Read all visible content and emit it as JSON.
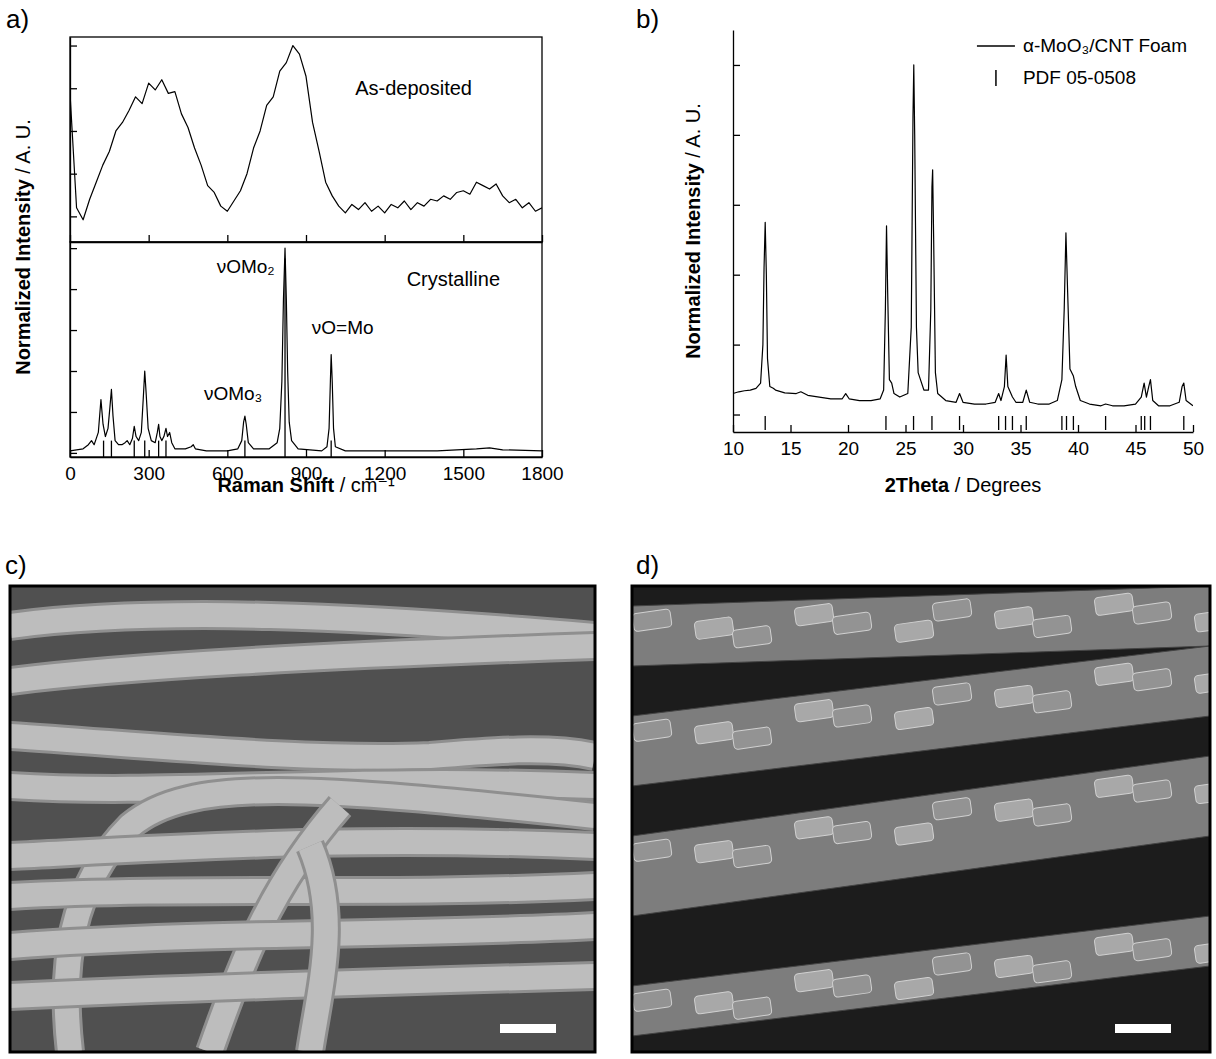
{
  "chart_data": [
    {
      "type": "line",
      "panel": "a)",
      "y_label": "Normalized Intensity",
      "y_label_unit": "/ A. U.",
      "xlim": [
        0,
        1800
      ],
      "xticks": [
        0,
        300,
        600,
        900,
        1200,
        1500,
        1800
      ],
      "ylim": [
        -0.15,
        1.05
      ],
      "yticks": [
        0,
        0.25,
        0.5,
        0.75,
        1.0
      ],
      "tick_labels": false,
      "legend": "upper right",
      "series": [
        {
          "name": "As-deposited",
          "color": "#000000",
          "x": [
            0,
            25,
            50,
            75,
            100,
            125,
            150,
            175,
            200,
            225,
            250,
            275,
            300,
            325,
            350,
            375,
            400,
            425,
            450,
            475,
            500,
            525,
            550,
            575,
            600,
            625,
            650,
            675,
            700,
            725,
            750,
            775,
            800,
            825,
            850,
            875,
            900,
            925,
            950,
            975,
            1000,
            1025,
            1050,
            1075,
            1100,
            1125,
            1150,
            1175,
            1200,
            1225,
            1250,
            1275,
            1300,
            1325,
            1350,
            1375,
            1400,
            1425,
            1450,
            1475,
            1500,
            1525,
            1550,
            1575,
            1600,
            1625,
            1650,
            1675,
            1700,
            1725,
            1750,
            1775,
            1800
          ],
          "values": [
            0.72,
            0.05,
            -0.02,
            0.1,
            0.2,
            0.3,
            0.38,
            0.5,
            0.55,
            0.62,
            0.7,
            0.66,
            0.78,
            0.74,
            0.8,
            0.72,
            0.73,
            0.6,
            0.52,
            0.4,
            0.3,
            0.18,
            0.14,
            0.06,
            0.03,
            0.09,
            0.15,
            0.25,
            0.4,
            0.5,
            0.65,
            0.7,
            0.85,
            0.9,
            1.0,
            0.95,
            0.82,
            0.55,
            0.38,
            0.2,
            0.12,
            0.06,
            0.02,
            0.07,
            0.04,
            0.08,
            0.03,
            0.06,
            0.02,
            0.07,
            0.05,
            0.09,
            0.04,
            0.08,
            0.06,
            0.1,
            0.09,
            0.12,
            0.1,
            0.14,
            0.15,
            0.13,
            0.2,
            0.18,
            0.16,
            0.19,
            0.12,
            0.08,
            0.1,
            0.05,
            0.08,
            0.03,
            0.05
          ]
        }
      ]
    },
    {
      "type": "line",
      "x_label": "Raman Shift",
      "x_label_unit": "/ cm⁻¹",
      "xlim": [
        0,
        1800
      ],
      "xticks": [
        0,
        300,
        600,
        900,
        1200,
        1500,
        1800
      ],
      "ylim": [
        -0.02,
        1.03
      ],
      "yticks": [
        0,
        0.2,
        0.4,
        0.6,
        0.8,
        1.0
      ],
      "tick_labels": "x",
      "legend": "upper right",
      "series": [
        {
          "name": "Crystalline",
          "color": "#000000",
          "x": [
            0,
            50,
            70,
            82,
            92,
            100,
            108,
            118,
            126,
            135,
            145,
            152,
            158,
            164,
            172,
            185,
            198,
            210,
            218,
            228,
            238,
            245,
            252,
            262,
            272,
            280,
            285,
            290,
            298,
            310,
            325,
            333,
            338,
            343,
            350,
            358,
            366,
            372,
            380,
            388,
            400,
            440,
            462,
            470,
            478,
            520,
            600,
            640,
            655,
            662,
            667,
            672,
            680,
            700,
            760,
            790,
            800,
            808,
            814,
            820,
            825,
            830,
            836,
            845,
            870,
            960,
            980,
            988,
            993,
            996,
            1000,
            1005,
            1012,
            1050,
            1200,
            1400,
            1550,
            1600,
            1650,
            1800
          ],
          "values": [
            0.01,
            0.02,
            0.04,
            0.06,
            0.04,
            0.07,
            0.1,
            0.26,
            0.14,
            0.08,
            0.12,
            0.22,
            0.31,
            0.18,
            0.06,
            0.04,
            0.04,
            0.05,
            0.06,
            0.04,
            0.07,
            0.13,
            0.08,
            0.06,
            0.1,
            0.28,
            0.4,
            0.3,
            0.12,
            0.06,
            0.05,
            0.1,
            0.14,
            0.08,
            0.06,
            0.08,
            0.12,
            0.08,
            0.1,
            0.05,
            0.02,
            0.02,
            0.03,
            0.04,
            0.02,
            0.01,
            0.01,
            0.02,
            0.06,
            0.15,
            0.18,
            0.14,
            0.05,
            0.02,
            0.02,
            0.05,
            0.12,
            0.35,
            0.75,
            1.0,
            0.75,
            0.4,
            0.15,
            0.06,
            0.02,
            0.01,
            0.03,
            0.12,
            0.35,
            0.48,
            0.35,
            0.12,
            0.03,
            0.01,
            0.01,
            0.01,
            0.02,
            0.025,
            0.015,
            0.01
          ]
        }
      ],
      "reference": {
        "x": [
          128,
          158,
          245,
          285,
          338,
          366,
          667,
          820,
          996
        ],
        "values": [
          0.06,
          0.06,
          0.06,
          0.06,
          0.06,
          0.06,
          0.06,
          0.95,
          0.06
        ]
      },
      "annotations": [
        {
          "text": "νOMo₂",
          "x": 670,
          "y": 0.88
        },
        {
          "text": "νO=Mo",
          "x": 1040,
          "y": 0.58
        },
        {
          "text": "νOMo₃",
          "x": 622,
          "y": 0.26
        }
      ]
    },
    {
      "type": "line",
      "panel": "b)",
      "x_label": "2Theta",
      "x_label_unit": "/ Degrees",
      "y_label": "Normalized Intensity",
      "y_label_unit": "/ A. U.",
      "xlim": [
        10,
        50
      ],
      "xticks": [
        10,
        15,
        20,
        25,
        30,
        35,
        40,
        45,
        50
      ],
      "ylim": [
        -0.05,
        1.1
      ],
      "yticks": [
        0,
        0.2,
        0.4,
        0.6,
        0.8,
        1.0
      ],
      "tick_labels": "x",
      "legend": "upper right",
      "series": [
        {
          "name": "α-MoO₃/CNT Foam",
          "color": "#000000",
          "x": [
            10,
            10.5,
            11,
            11.5,
            12,
            12.4,
            12.6,
            12.7,
            12.8,
            12.9,
            13,
            13.2,
            13.5,
            13.7,
            14.5,
            15.5,
            15.9,
            16.5,
            17.5,
            18.5,
            19.5,
            19.8,
            20.1,
            21,
            22,
            22.8,
            23.1,
            23.25,
            23.35,
            23.45,
            23.6,
            23.8,
            24,
            24.5,
            25.2,
            25.5,
            25.65,
            25.72,
            25.8,
            25.95,
            26.1,
            26.3,
            26.6,
            27,
            27.2,
            27.3,
            27.36,
            27.45,
            27.6,
            27.8,
            28.5,
            29.4,
            29.7,
            30,
            31,
            32,
            32.8,
            33.1,
            33.3,
            33.6,
            33.75,
            33.9,
            34.3,
            34.6,
            35.2,
            35.5,
            35.8,
            36.5,
            37.5,
            38.2,
            38.6,
            38.8,
            38.95,
            39.1,
            39.3,
            39.6,
            39.8,
            40.2,
            41,
            42,
            42.4,
            43,
            44,
            45,
            45.5,
            45.75,
            45.95,
            46.15,
            46.3,
            46.5,
            47,
            48,
            48.8,
            49.05,
            49.2,
            49.4,
            50
          ],
          "values": [
            0.06,
            0.065,
            0.068,
            0.07,
            0.075,
            0.09,
            0.2,
            0.42,
            0.55,
            0.4,
            0.16,
            0.08,
            0.075,
            0.07,
            0.062,
            0.06,
            0.065,
            0.055,
            0.05,
            0.045,
            0.045,
            0.06,
            0.045,
            0.04,
            0.04,
            0.045,
            0.07,
            0.3,
            0.54,
            0.35,
            0.1,
            0.09,
            0.06,
            0.05,
            0.06,
            0.25,
            0.85,
            1.0,
            0.8,
            0.25,
            0.12,
            0.1,
            0.07,
            0.07,
            0.3,
            0.65,
            0.7,
            0.5,
            0.12,
            0.06,
            0.04,
            0.035,
            0.06,
            0.035,
            0.03,
            0.03,
            0.035,
            0.06,
            0.04,
            0.08,
            0.17,
            0.08,
            0.05,
            0.035,
            0.035,
            0.07,
            0.035,
            0.03,
            0.03,
            0.04,
            0.1,
            0.3,
            0.52,
            0.35,
            0.13,
            0.11,
            0.08,
            0.04,
            0.03,
            0.025,
            0.03,
            0.025,
            0.025,
            0.03,
            0.05,
            0.09,
            0.05,
            0.08,
            0.1,
            0.04,
            0.025,
            0.025,
            0.035,
            0.08,
            0.09,
            0.04,
            0.025
          ]
        }
      ],
      "reference": {
        "name": "PDF 05-0508",
        "color": "#000000",
        "x": [
          12.8,
          23.3,
          25.7,
          27.3,
          29.7,
          33.1,
          33.7,
          34.3,
          35.5,
          38.6,
          39.0,
          39.6,
          42.4,
          45.5,
          45.8,
          46.3,
          49.2
        ]
      }
    }
  ],
  "images": [
    {
      "panel": "c)"
    },
    {
      "panel": "d)"
    }
  ]
}
